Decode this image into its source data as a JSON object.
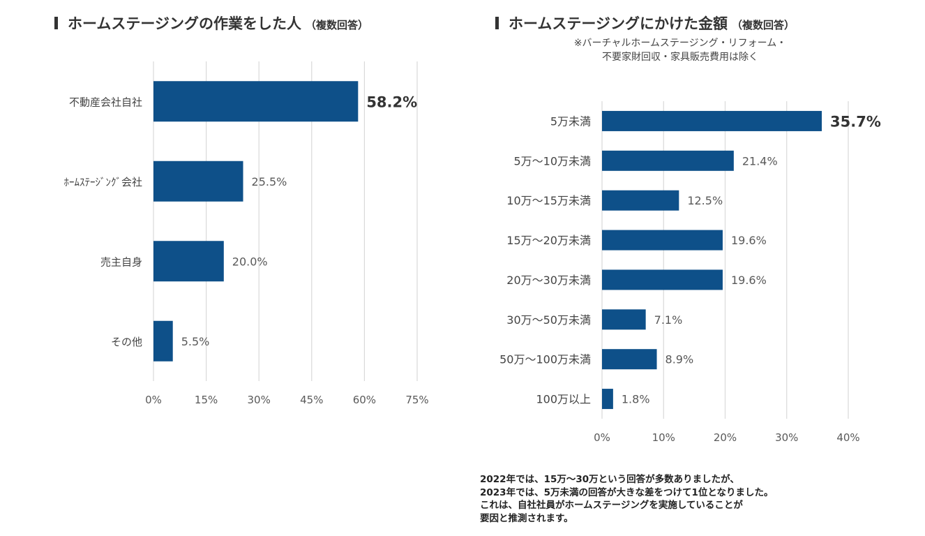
{
  "chart_data": [
    {
      "type": "bar",
      "orientation": "horizontal",
      "title": "ホームステージングの作業をした人",
      "title_suffix": "（複数回答）",
      "categories": [
        "不動産会社自社",
        "ﾎｰﾑｽﾃｰｼﾞﾝｸﾞ会社",
        "売主自身",
        "その他"
      ],
      "values": [
        58.2,
        25.5,
        20.0,
        5.5
      ],
      "value_labels": [
        "58.2%",
        "25.5%",
        "20.0%",
        "5.5%"
      ],
      "highlight_index": 0,
      "xlim": [
        0,
        75
      ],
      "xticks": [
        "0%",
        "15%",
        "30%",
        "45%",
        "60%",
        "75%"
      ],
      "grid": true,
      "color": "#0e5089"
    },
    {
      "type": "bar",
      "orientation": "horizontal",
      "title": "ホームステージングにかけた金額",
      "title_suffix": "（複数回答）",
      "subtitle": [
        "※バーチャルホームステージング・リフォーム・",
        "不要家財回収・家具販売費用は除く"
      ],
      "categories": [
        "5万未満",
        "5万～10万未満",
        "10万～15万未満",
        "15万～20万未満",
        "20万～30万未満",
        "30万～50万未満",
        "50万～100万未満",
        "100万以上"
      ],
      "values": [
        35.7,
        21.4,
        12.5,
        19.6,
        19.6,
        7.1,
        8.9,
        1.8
      ],
      "value_labels": [
        "35.7%",
        "21.4%",
        "12.5%",
        "19.6%",
        "19.6%",
        "7.1%",
        "8.9%",
        "1.8%"
      ],
      "highlight_index": 0,
      "xlim": [
        0,
        40
      ],
      "xticks": [
        "0%",
        "10%",
        "20%",
        "30%",
        "40%"
      ],
      "grid": true,
      "color": "#0e5089"
    }
  ],
  "footnote": {
    "lines": [
      "2022年では、15万～30万という回答が多数ありましたが、",
      "2023年では、5万未満の回答が大きな差をつけて1位となりました。",
      "これは、自社社員がホームステージングを実施していることが",
      "要因と推測されます。"
    ]
  }
}
